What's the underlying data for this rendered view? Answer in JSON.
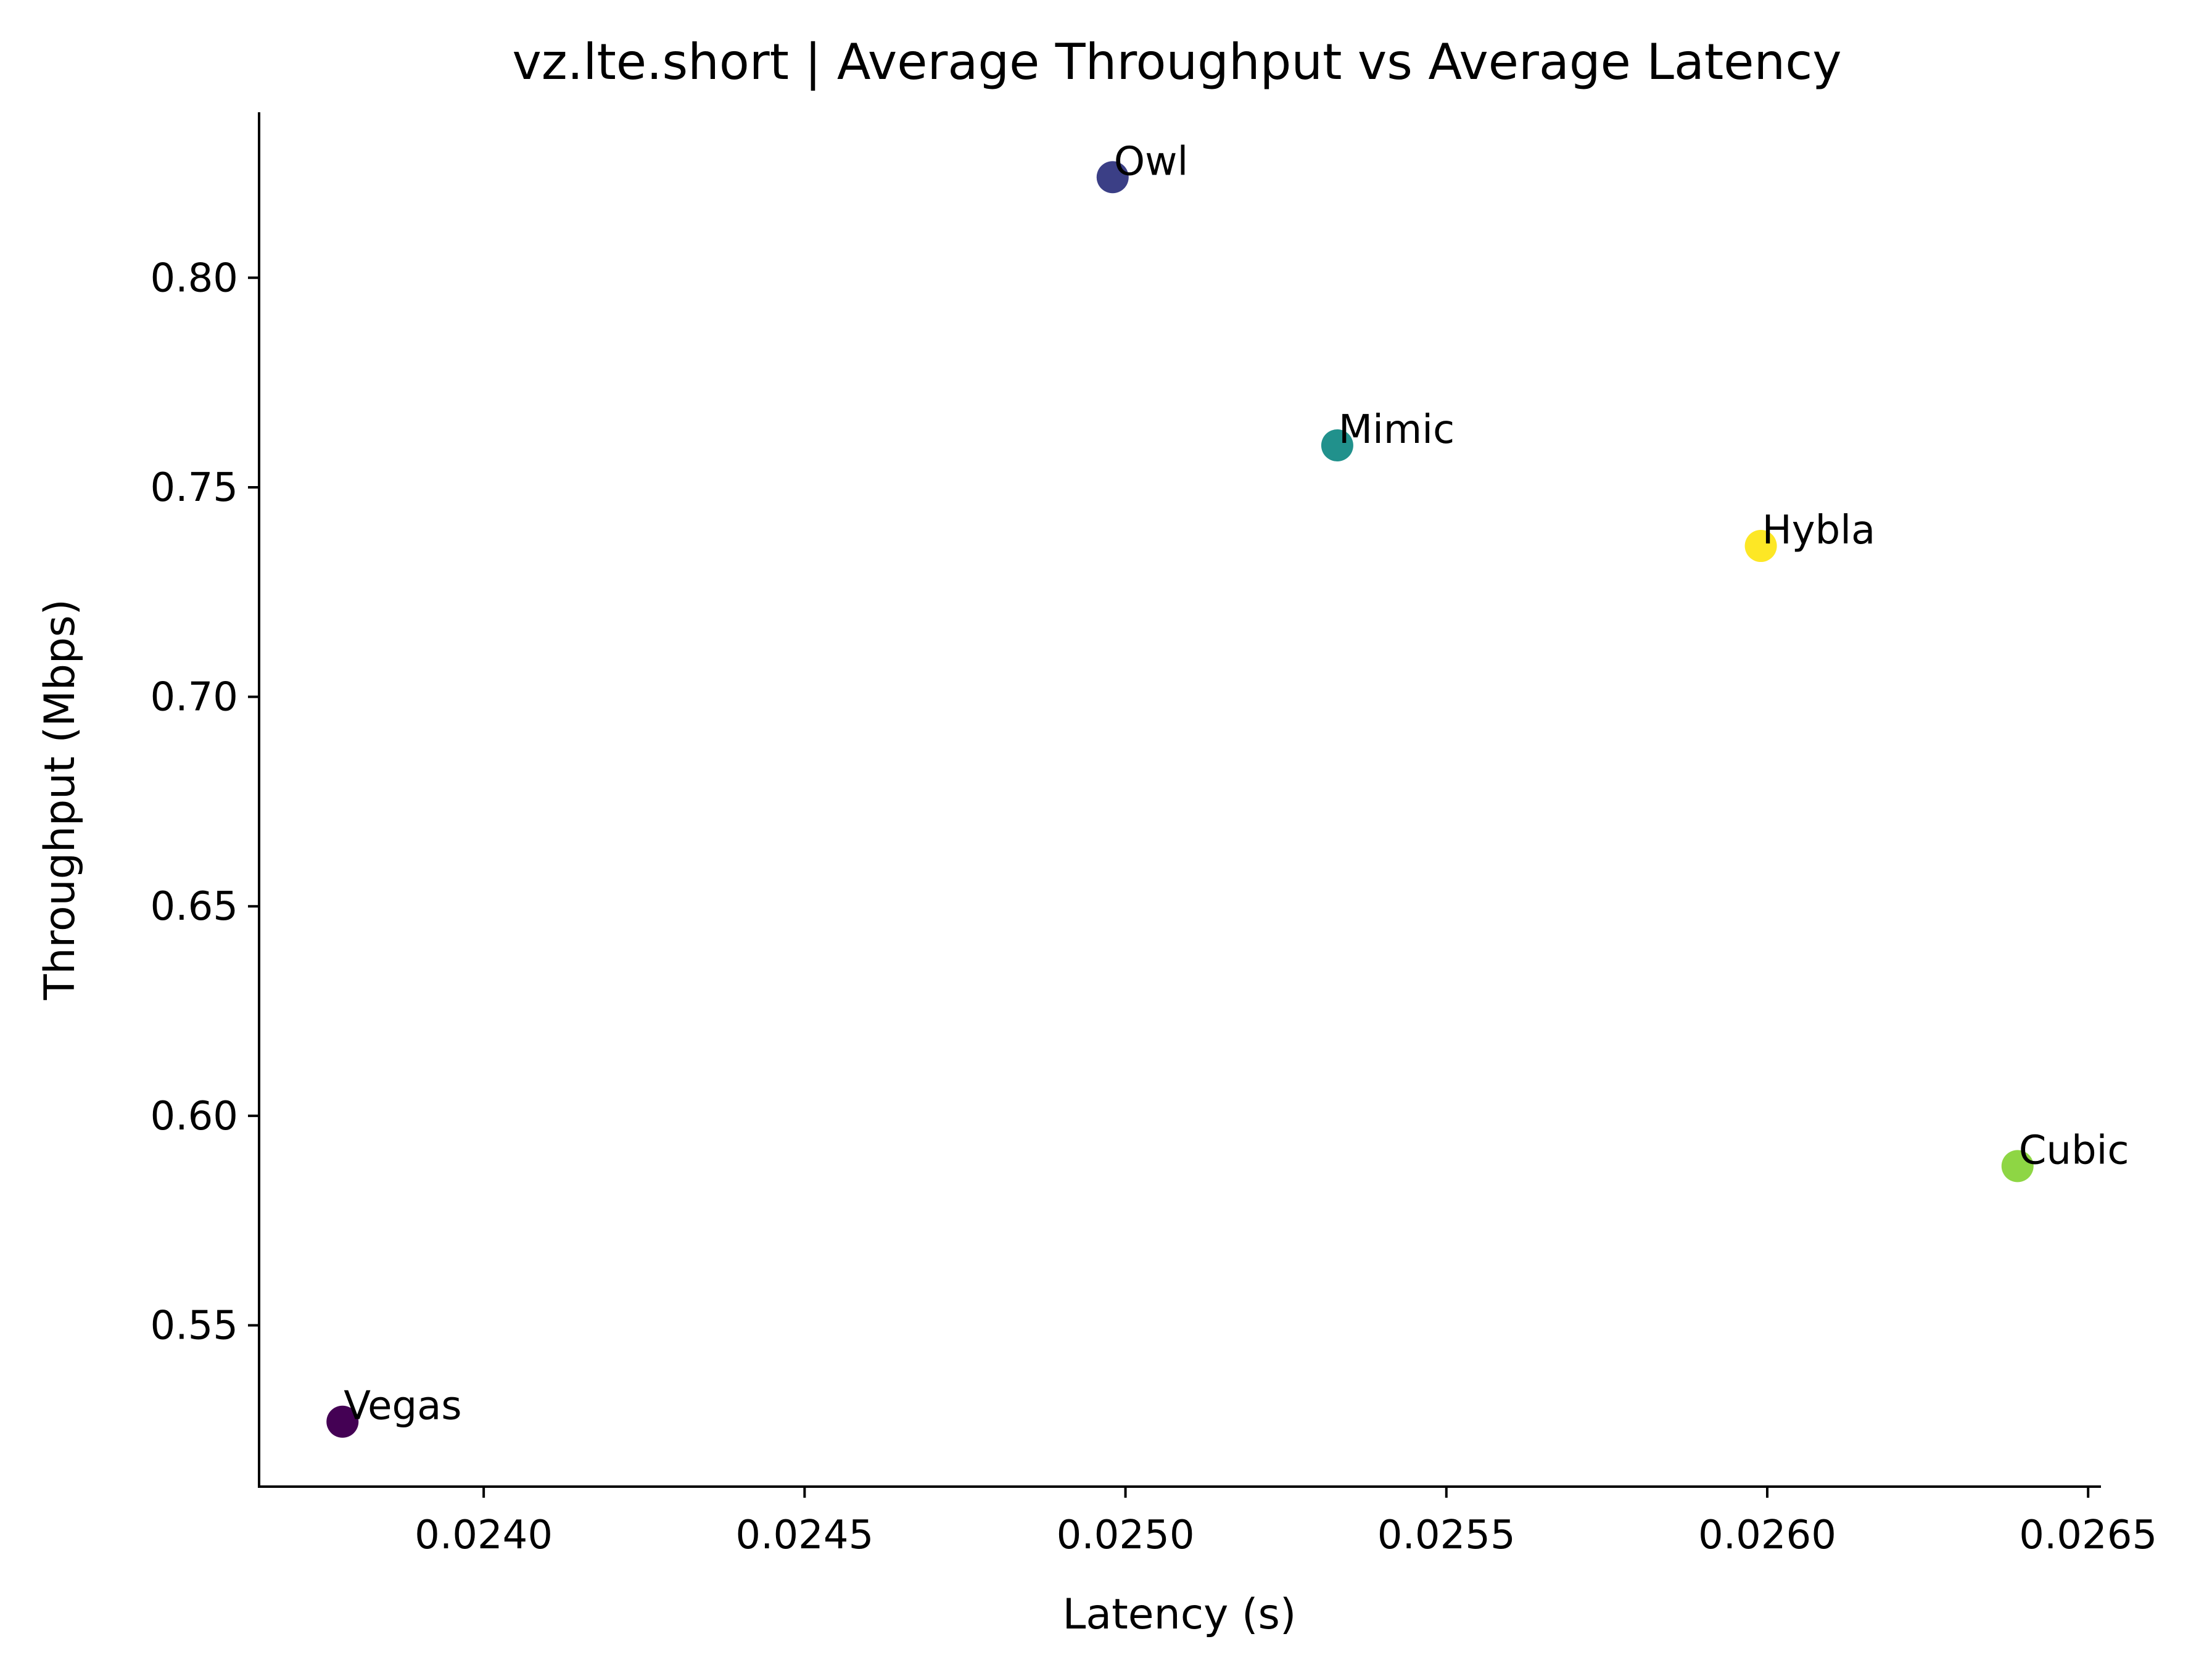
{
  "chart_data": {
    "type": "scatter",
    "title": "vz.lte.short | Average Throughput vs Average Latency",
    "xlabel": "Latency (s)",
    "ylabel": "Throughput (Mbps)",
    "xlim": [
      0.02365,
      0.02652
    ],
    "ylim": [
      0.5115,
      0.8395
    ],
    "xticks": [
      0.024,
      0.0245,
      0.025,
      0.0255,
      0.026,
      0.0265
    ],
    "xtick_labels": [
      "0.0240",
      "0.0245",
      "0.0250",
      "0.0255",
      "0.0260",
      "0.0265"
    ],
    "yticks": [
      0.55,
      0.6,
      0.65,
      0.7,
      0.75,
      0.8
    ],
    "ytick_labels": [
      "0.55",
      "0.60",
      "0.65",
      "0.70",
      "0.75",
      "0.80"
    ],
    "grid": false,
    "points": [
      {
        "label": "Vegas",
        "x": 0.02378,
        "y": 0.527,
        "color": "#440154"
      },
      {
        "label": "Owl",
        "x": 0.02498,
        "y": 0.824,
        "color": "#3b3f86"
      },
      {
        "label": "Mimic",
        "x": 0.02533,
        "y": 0.76,
        "color": "#21918c"
      },
      {
        "label": "Hybla",
        "x": 0.02599,
        "y": 0.736,
        "color": "#fde725"
      },
      {
        "label": "Cubic",
        "x": 0.02639,
        "y": 0.588,
        "color": "#8ed644"
      }
    ]
  }
}
